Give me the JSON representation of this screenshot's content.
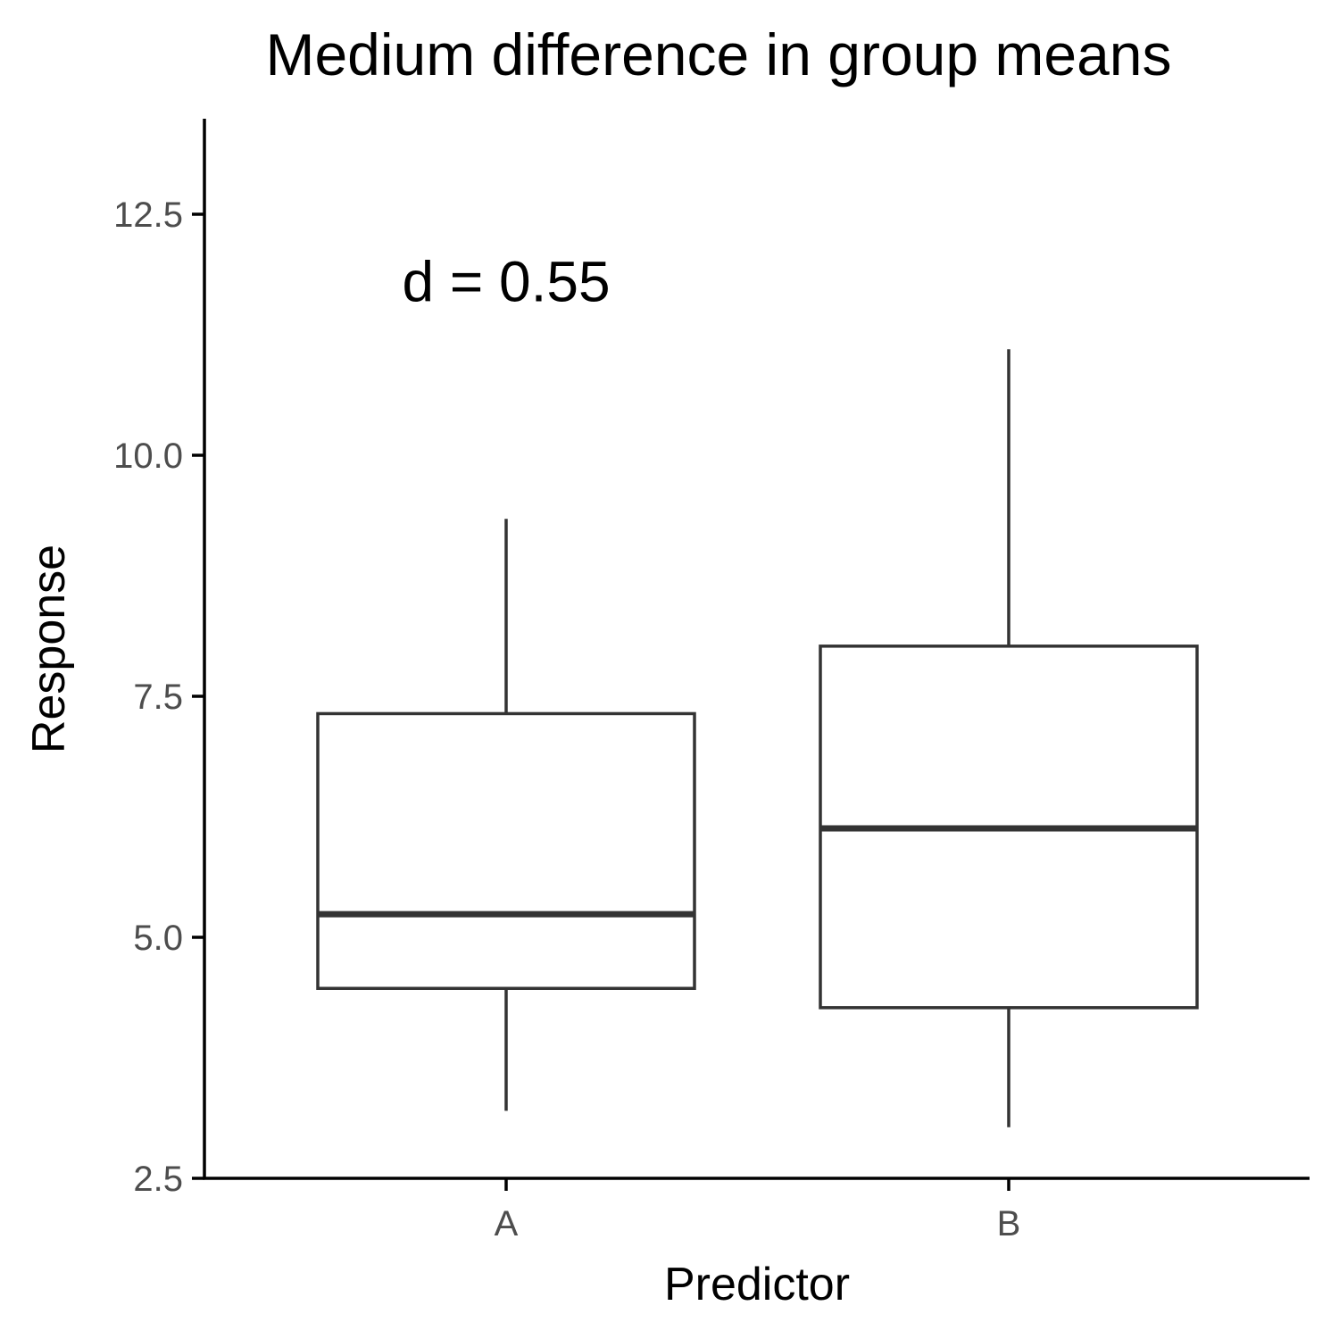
{
  "chart_data": {
    "type": "boxplot",
    "title": "Medium difference in group means",
    "xlabel": "Predictor",
    "ylabel": "Response",
    "categories": [
      "A",
      "B"
    ],
    "yticks": [
      2.5,
      5.0,
      7.5,
      10.0,
      12.5
    ],
    "ytick_labels": [
      "2.5",
      "5.0",
      "7.5",
      "10.0",
      "12.5"
    ],
    "ylim": [
      2.5,
      13.5
    ],
    "grid": false,
    "annotation": {
      "text": "d = 0.55",
      "x": "A",
      "y": 11.8
    },
    "boxes": [
      {
        "category": "A",
        "whisker_low": 3.2,
        "q1": 4.47,
        "median": 5.24,
        "q3": 7.32,
        "whisker_high": 9.34
      },
      {
        "category": "B",
        "whisker_low": 3.03,
        "q1": 4.27,
        "median": 6.13,
        "q3": 8.02,
        "whisker_high": 11.1
      }
    ],
    "colors": {
      "box_line": "#333333",
      "axis": "#000000",
      "tick_label": "#4d4d4d",
      "box_fill": "#ffffff"
    }
  }
}
